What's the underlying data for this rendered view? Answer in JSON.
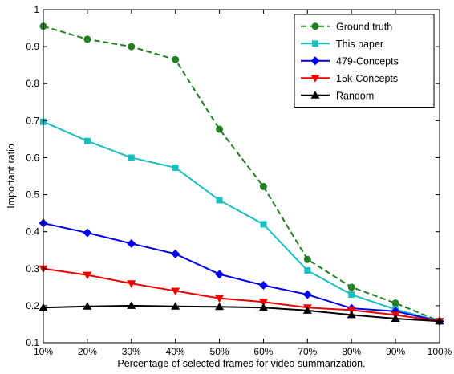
{
  "chart_data": {
    "type": "line",
    "title": "",
    "xlabel": "Percentage of selected frames for video summarization.",
    "ylabel": "Important ratio",
    "categories": [
      "10%",
      "20%",
      "30%",
      "40%",
      "50%",
      "60%",
      "70%",
      "80%",
      "90%",
      "100%"
    ],
    "x": [
      10,
      20,
      30,
      40,
      50,
      60,
      70,
      80,
      90,
      100
    ],
    "xlim": [
      10,
      100
    ],
    "ylim": [
      0.1,
      1.0
    ],
    "yticks": [
      "0.1",
      "0.2",
      "0.3",
      "0.4",
      "0.5",
      "0.6",
      "0.7",
      "0.8",
      "0.9",
      "1"
    ],
    "grid": false,
    "legend_position": "top-right",
    "series": [
      {
        "name": "Ground truth",
        "color": "#218021",
        "line_style": "dashed",
        "marker": "circle",
        "values": [
          0.955,
          0.92,
          0.9,
          0.865,
          0.677,
          0.522,
          0.325,
          0.25,
          0.207,
          0.158
        ]
      },
      {
        "name": "This paper",
        "color": "#1cbfbf",
        "line_style": "solid",
        "marker": "square",
        "values": [
          0.697,
          0.645,
          0.6,
          0.573,
          0.485,
          0.42,
          0.295,
          0.23,
          0.19,
          0.158
        ]
      },
      {
        "name": "479-Concepts",
        "color": "#0000ee",
        "line_style": "solid",
        "marker": "diamond",
        "values": [
          0.423,
          0.397,
          0.368,
          0.34,
          0.285,
          0.255,
          0.23,
          0.193,
          0.185,
          0.158
        ]
      },
      {
        "name": "15k-Concepts",
        "color": "#ee0000",
        "line_style": "solid",
        "marker": "triangle-down",
        "values": [
          0.3,
          0.283,
          0.26,
          0.24,
          0.22,
          0.21,
          0.195,
          0.188,
          0.175,
          0.158
        ]
      },
      {
        "name": "Random",
        "color": "#000000",
        "line_style": "solid",
        "marker": "triangle-up",
        "values": [
          0.195,
          0.198,
          0.2,
          0.198,
          0.197,
          0.195,
          0.187,
          0.175,
          0.165,
          0.158
        ]
      }
    ]
  }
}
